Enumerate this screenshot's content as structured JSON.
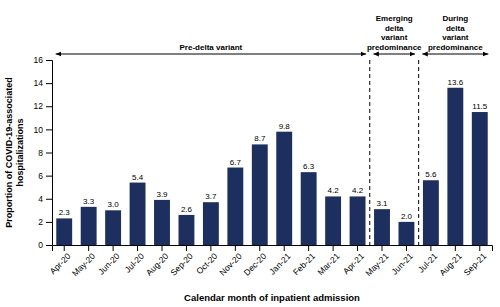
{
  "chart_data": {
    "type": "bar",
    "categories": [
      "Apr-20",
      "May-20",
      "Jun-20",
      "Jul-20",
      "Aug-20",
      "Sep-20",
      "Oct-20",
      "Nov-20",
      "Dec-20",
      "Jan-21",
      "Feb-21",
      "Mar-21",
      "Apr-21",
      "May-21",
      "Jun-21",
      "Jul-21",
      "Aug-21",
      "Sep-21"
    ],
    "values": [
      2.3,
      3.3,
      3.0,
      5.4,
      3.9,
      2.6,
      3.7,
      6.7,
      8.7,
      9.8,
      6.3,
      4.2,
      4.2,
      3.1,
      2.0,
      5.6,
      13.6,
      11.5
    ],
    "value_labels": [
      "2.3",
      "3.3",
      "3.0",
      "5.4",
      "3.9",
      "2.6",
      "3.7",
      "6.7",
      "8.7",
      "9.8",
      "6.3",
      "4.2",
      "4.2",
      "3.1",
      "2.0",
      "5.6",
      "13.6",
      "11.5"
    ],
    "data_labels": true,
    "color": "#1c2f5e",
    "xlabel": "Calendar month of inpatient admission",
    "ylabel": "Proportion of COVID-19-associated\nhospitalizations",
    "ylim": [
      0,
      16
    ],
    "yticks": [
      0,
      2,
      4,
      6,
      8,
      10,
      12,
      14,
      16
    ],
    "grid": false,
    "annotations": [
      {
        "text": "Pre-delta variant",
        "from": "Apr-20",
        "to": "Apr-21"
      },
      {
        "text": "Emerging\ndelta\nvariant\npredominance",
        "from": "May-21",
        "to": "Jun-21"
      },
      {
        "text": "During\ndelta\nvariant\npredominance",
        "from": "Jul-21",
        "to": "Sep-21"
      }
    ]
  }
}
